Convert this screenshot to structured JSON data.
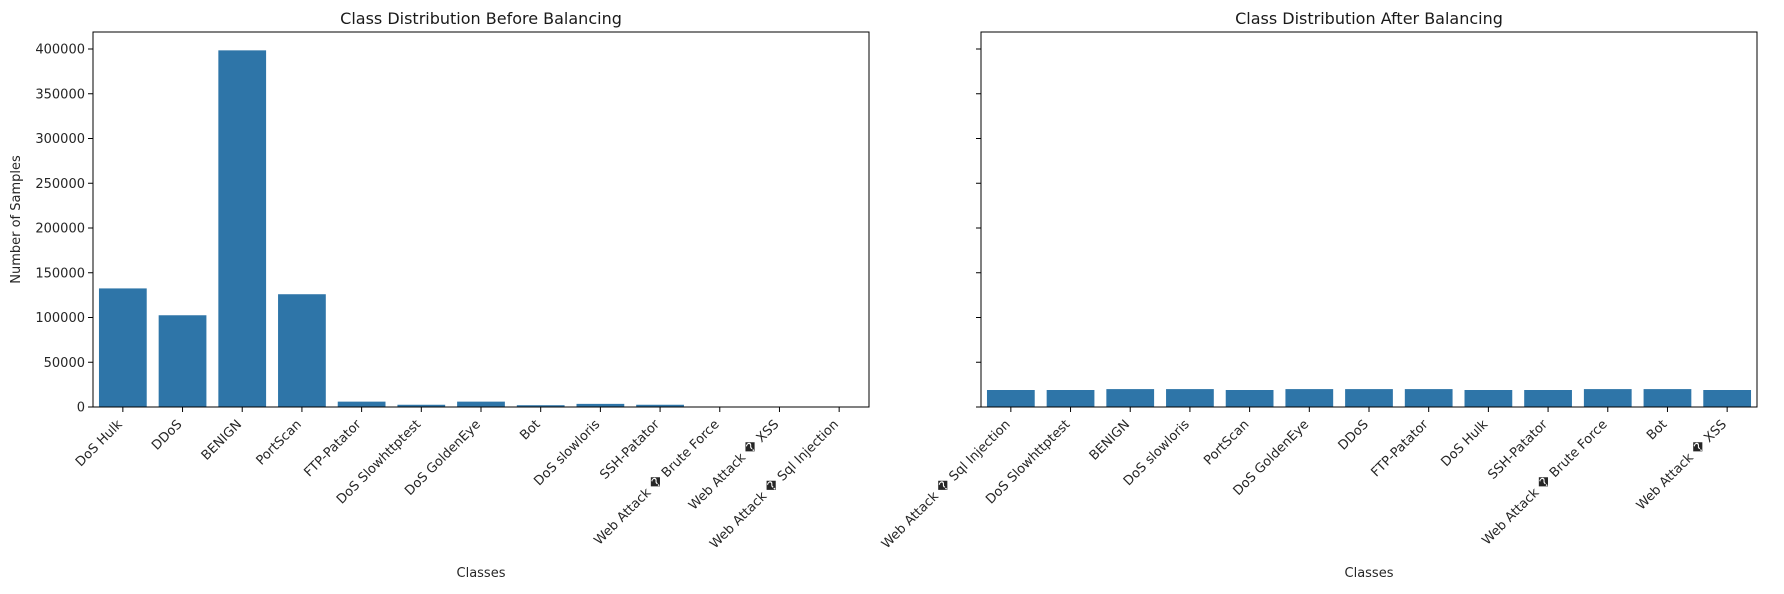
{
  "chart_data": [
    {
      "type": "bar",
      "title": "Class Distribution Before Balancing",
      "xlabel": "Classes",
      "ylabel": "Number of Samples",
      "ylim": [
        0,
        419000
      ],
      "yticks": [
        0,
        50000,
        100000,
        150000,
        200000,
        250000,
        300000,
        350000,
        400000
      ],
      "ytick_labels": [
        "0",
        "50000",
        "100000",
        "150000",
        "200000",
        "250000",
        "300000",
        "350000",
        "400000"
      ],
      "grid": false,
      "bar_color": "#2e75a8",
      "categories": [
        "DoS Hulk",
        "DDoS",
        "BENIGN",
        "PortScan",
        "FTP-Patator",
        "DoS Slowhttptest",
        "DoS GoldenEye",
        "Bot",
        "DoS slowloris",
        "SSH-Patator",
        "Web Attack � Brute Force",
        "Web Attack � XSS",
        "Web Attack � Sql Injection"
      ],
      "values": [
        132500,
        102500,
        398500,
        126000,
        6000,
        2500,
        6000,
        2000,
        3500,
        2500,
        350,
        150,
        20
      ]
    },
    {
      "type": "bar",
      "title": "Class Distribution After Balancing",
      "xlabel": "Classes",
      "ylabel": "",
      "ylim": [
        0,
        419000
      ],
      "yticks": [
        0,
        50000,
        100000,
        150000,
        200000,
        250000,
        300000,
        350000,
        400000
      ],
      "ytick_labels": [],
      "shared_y": true,
      "grid": false,
      "bar_color": "#2e75a8",
      "categories": [
        "Web Attack � Sql Injection",
        "DoS Slowhttptest",
        "BENIGN",
        "DoS slowloris",
        "PortScan",
        "DoS GoldenEye",
        "DDoS",
        "FTP-Patator",
        "DoS Hulk",
        "SSH-Patator",
        "Web Attack � Brute Force",
        "Bot",
        "Web Attack � XSS"
      ],
      "values": [
        19000,
        19000,
        20000,
        20000,
        19000,
        20000,
        20000,
        20000,
        19000,
        19000,
        20000,
        20000,
        19000
      ]
    }
  ]
}
